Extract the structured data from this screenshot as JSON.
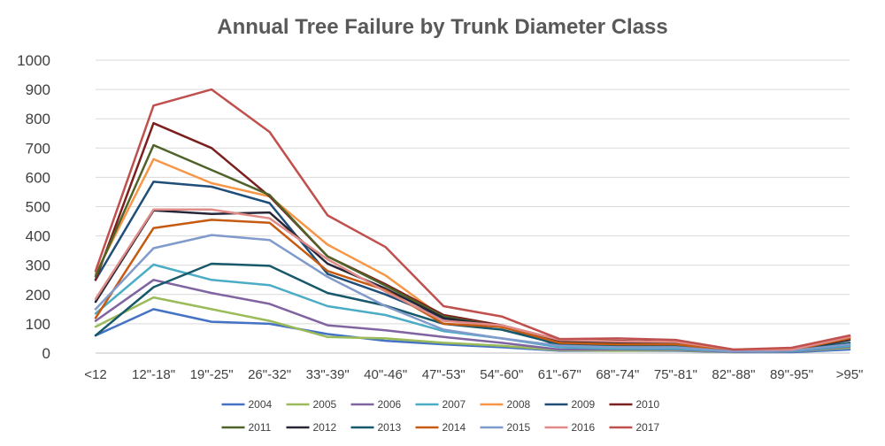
{
  "chart_data": {
    "type": "line",
    "title": "Annual Tree Failure by Trunk Diameter Class",
    "xlabel": "",
    "ylabel": "",
    "ylim": [
      0,
      1000
    ],
    "yticks": [
      0,
      100,
      200,
      300,
      400,
      500,
      600,
      700,
      800,
      900,
      1000
    ],
    "grid": true,
    "legend_position": "bottom",
    "categories": [
      "<12",
      "12\"-18\"",
      "19\"-25\"",
      "26\"-32\"",
      "33\"-39\"",
      "40\"-46\"",
      "47\"-53\"",
      "54\"-60\"",
      "61\"-67\"",
      "68\"-74\"",
      "75\"-81\"",
      "82\"-88\"",
      "89\"-95\"",
      ">95\""
    ],
    "series": [
      {
        "name": "2004",
        "color": "#4472C4",
        "values": [
          60,
          150,
          107,
          100,
          65,
          42,
          30,
          20,
          8,
          8,
          8,
          3,
          3,
          12
        ]
      },
      {
        "name": "2005",
        "color": "#9BBB59",
        "values": [
          90,
          190,
          150,
          110,
          55,
          50,
          35,
          25,
          10,
          8,
          10,
          3,
          5,
          18
        ]
      },
      {
        "name": "2006",
        "color": "#8064A2",
        "values": [
          110,
          250,
          205,
          168,
          95,
          78,
          55,
          35,
          12,
          12,
          12,
          4,
          5,
          22
        ]
      },
      {
        "name": "2007",
        "color": "#4BACC6",
        "values": [
          135,
          302,
          250,
          232,
          160,
          130,
          75,
          50,
          20,
          15,
          15,
          5,
          6,
          25
        ]
      },
      {
        "name": "2008",
        "color": "#F79646",
        "values": [
          270,
          662,
          580,
          535,
          370,
          265,
          120,
          88,
          42,
          38,
          35,
          10,
          10,
          45
        ]
      },
      {
        "name": "2009",
        "color": "#1F4E79",
        "values": [
          250,
          585,
          568,
          512,
          270,
          200,
          118,
          92,
          25,
          22,
          22,
          6,
          8,
          30
        ]
      },
      {
        "name": "2010",
        "color": "#7B1F1F",
        "values": [
          250,
          785,
          700,
          535,
          330,
          235,
          130,
          95,
          45,
          42,
          38,
          10,
          12,
          55
        ]
      },
      {
        "name": "2011",
        "color": "#4F6228",
        "values": [
          262,
          710,
          625,
          540,
          330,
          230,
          125,
          90,
          40,
          38,
          35,
          10,
          10,
          50
        ]
      },
      {
        "name": "2012",
        "color": "#262638",
        "values": [
          175,
          487,
          475,
          480,
          305,
          220,
          120,
          90,
          38,
          35,
          32,
          8,
          10,
          45
        ]
      },
      {
        "name": "2013",
        "color": "#17586A",
        "values": [
          60,
          225,
          305,
          298,
          205,
          162,
          100,
          80,
          30,
          25,
          25,
          6,
          8,
          35
        ]
      },
      {
        "name": "2014",
        "color": "#C55A11",
        "values": [
          120,
          427,
          455,
          445,
          280,
          215,
          100,
          90,
          35,
          30,
          30,
          8,
          10,
          50
        ]
      },
      {
        "name": "2015",
        "color": "#7F9ACB",
        "values": [
          150,
          358,
          403,
          386,
          260,
          160,
          80,
          50,
          25,
          20,
          20,
          5,
          8,
          30
        ]
      },
      {
        "name": "2016",
        "color": "#E08B87",
        "values": [
          185,
          490,
          490,
          460,
          320,
          210,
          110,
          95,
          45,
          40,
          38,
          12,
          12,
          55
        ]
      },
      {
        "name": "2017",
        "color": "#C0504D",
        "values": [
          280,
          845,
          900,
          755,
          470,
          362,
          160,
          125,
          48,
          50,
          45,
          12,
          18,
          60
        ]
      }
    ]
  }
}
